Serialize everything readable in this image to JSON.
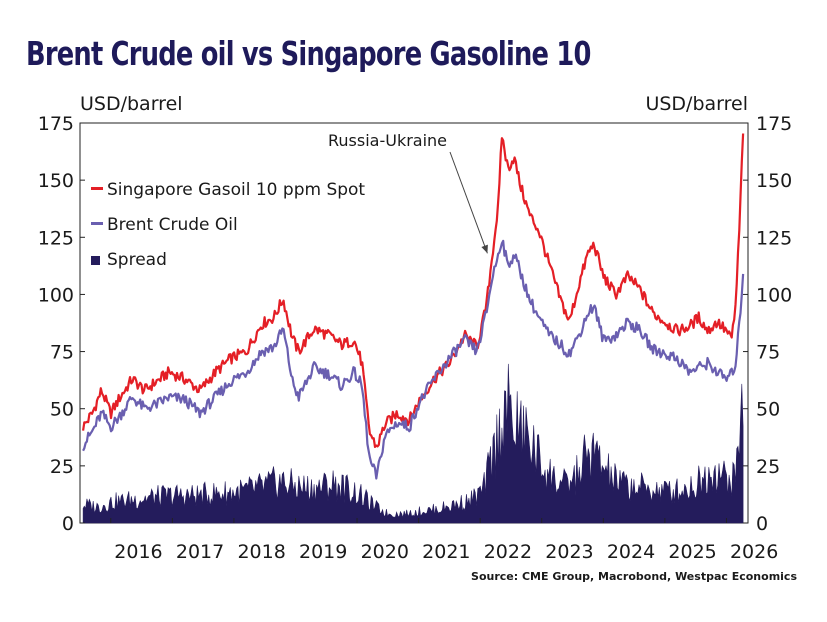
{
  "title": "Brent Crude oil vs Singapore Gasoline 10",
  "source": "Source: CME Group, Macrobond, Westpac Economics",
  "colors": {
    "gasoil": "#e41f26",
    "brent": "#6a5fb0",
    "spread": "#241c5c",
    "title": "#1e1a5a"
  },
  "chart_data": {
    "type": "line",
    "y_left_label": "USD/barrel",
    "y_right_label": "USD/barrel",
    "ylim": [
      0,
      175
    ],
    "yticks": [
      "0",
      "25",
      "50",
      "75",
      "100",
      "125",
      "150",
      "175"
    ],
    "xlim": [
      2015.5,
      2026.35
    ],
    "xticks": [
      "2016",
      "2017",
      "2018",
      "2019",
      "2020",
      "2021",
      "2022",
      "2023",
      "2024",
      "2025",
      "2026"
    ],
    "annotation": {
      "text": "Russia-Ukraine",
      "x": 2022.15
    },
    "legend": [
      "Singapore Gasoil 10 ppm Spot",
      "Brent Crude Oil",
      "Spread"
    ],
    "series": [
      {
        "name": "Singapore Gasoil 10 ppm Spot",
        "kind": "line",
        "color": "#e41f26",
        "points": [
          [
            2015.55,
            42
          ],
          [
            2015.7,
            48
          ],
          [
            2015.85,
            58
          ],
          [
            2016.0,
            48
          ],
          [
            2016.15,
            55
          ],
          [
            2016.35,
            63
          ],
          [
            2016.55,
            58
          ],
          [
            2016.75,
            62
          ],
          [
            2016.95,
            66
          ],
          [
            2017.2,
            63
          ],
          [
            2017.45,
            58
          ],
          [
            2017.7,
            66
          ],
          [
            2017.95,
            72
          ],
          [
            2018.2,
            75
          ],
          [
            2018.45,
            87
          ],
          [
            2018.65,
            90
          ],
          [
            2018.8,
            98
          ],
          [
            2018.95,
            81
          ],
          [
            2019.05,
            75
          ],
          [
            2019.3,
            85
          ],
          [
            2019.55,
            82
          ],
          [
            2019.75,
            78
          ],
          [
            2019.95,
            80
          ],
          [
            2020.08,
            70
          ],
          [
            2020.2,
            40
          ],
          [
            2020.32,
            33
          ],
          [
            2020.45,
            43
          ],
          [
            2020.65,
            48
          ],
          [
            2020.85,
            45
          ],
          [
            2021.0,
            53
          ],
          [
            2021.25,
            63
          ],
          [
            2021.5,
            70
          ],
          [
            2021.75,
            82
          ],
          [
            2021.95,
            77
          ],
          [
            2022.1,
            95
          ],
          [
            2022.2,
            118
          ],
          [
            2022.3,
            140
          ],
          [
            2022.35,
            170
          ],
          [
            2022.45,
            155
          ],
          [
            2022.55,
            160
          ],
          [
            2022.65,
            148
          ],
          [
            2022.8,
            135
          ],
          [
            2022.95,
            128
          ],
          [
            2023.1,
            115
          ],
          [
            2023.3,
            98
          ],
          [
            2023.45,
            88
          ],
          [
            2023.6,
            104
          ],
          [
            2023.75,
            118
          ],
          [
            2023.85,
            122
          ],
          [
            2024.0,
            108
          ],
          [
            2024.2,
            100
          ],
          [
            2024.4,
            108
          ],
          [
            2024.6,
            102
          ],
          [
            2024.8,
            92
          ],
          [
            2025.0,
            88
          ],
          [
            2025.2,
            84
          ],
          [
            2025.4,
            86
          ],
          [
            2025.55,
            90
          ],
          [
            2025.7,
            84
          ],
          [
            2025.85,
            88
          ],
          [
            2026.0,
            84
          ],
          [
            2026.08,
            80
          ],
          [
            2026.15,
            95
          ],
          [
            2026.22,
            135
          ],
          [
            2026.27,
            172
          ]
        ]
      },
      {
        "name": "Brent Crude Oil",
        "kind": "line",
        "color": "#6a5fb0",
        "points": [
          [
            2015.55,
            34
          ],
          [
            2015.7,
            40
          ],
          [
            2015.85,
            48
          ],
          [
            2016.0,
            42
          ],
          [
            2016.15,
            47
          ],
          [
            2016.35,
            55
          ],
          [
            2016.55,
            50
          ],
          [
            2016.75,
            52
          ],
          [
            2016.95,
            55
          ],
          [
            2017.2,
            54
          ],
          [
            2017.45,
            48
          ],
          [
            2017.7,
            55
          ],
          [
            2017.95,
            62
          ],
          [
            2018.2,
            66
          ],
          [
            2018.45,
            75
          ],
          [
            2018.65,
            77
          ],
          [
            2018.8,
            85
          ],
          [
            2018.95,
            62
          ],
          [
            2019.05,
            55
          ],
          [
            2019.3,
            68
          ],
          [
            2019.55,
            65
          ],
          [
            2019.75,
            60
          ],
          [
            2019.95,
            66
          ],
          [
            2020.08,
            60
          ],
          [
            2020.2,
            28
          ],
          [
            2020.32,
            20
          ],
          [
            2020.45,
            38
          ],
          [
            2020.65,
            44
          ],
          [
            2020.85,
            42
          ],
          [
            2021.0,
            52
          ],
          [
            2021.25,
            63
          ],
          [
            2021.5,
            72
          ],
          [
            2021.75,
            80
          ],
          [
            2021.95,
            75
          ],
          [
            2022.1,
            92
          ],
          [
            2022.2,
            108
          ],
          [
            2022.3,
            118
          ],
          [
            2022.35,
            125
          ],
          [
            2022.45,
            112
          ],
          [
            2022.55,
            118
          ],
          [
            2022.65,
            110
          ],
          [
            2022.8,
            98
          ],
          [
            2022.95,
            90
          ],
          [
            2023.1,
            83
          ],
          [
            2023.3,
            78
          ],
          [
            2023.45,
            74
          ],
          [
            2023.6,
            82
          ],
          [
            2023.75,
            92
          ],
          [
            2023.85,
            95
          ],
          [
            2024.0,
            80
          ],
          [
            2024.2,
            82
          ],
          [
            2024.4,
            88
          ],
          [
            2024.6,
            84
          ],
          [
            2024.8,
            76
          ],
          [
            2025.0,
            74
          ],
          [
            2025.2,
            72
          ],
          [
            2025.4,
            66
          ],
          [
            2025.55,
            68
          ],
          [
            2025.7,
            70
          ],
          [
            2025.85,
            66
          ],
          [
            2026.0,
            63
          ],
          [
            2026.08,
            65
          ],
          [
            2026.15,
            70
          ],
          [
            2026.22,
            90
          ],
          [
            2026.27,
            110
          ]
        ]
      },
      {
        "name": "Spread",
        "kind": "area",
        "color": "#241c5c",
        "points": [
          [
            2015.55,
            8
          ],
          [
            2015.8,
            7
          ],
          [
            2016.0,
            9
          ],
          [
            2016.3,
            10
          ],
          [
            2016.6,
            11
          ],
          [
            2017.0,
            12
          ],
          [
            2017.4,
            12
          ],
          [
            2017.8,
            13
          ],
          [
            2018.2,
            14
          ],
          [
            2018.5,
            16
          ],
          [
            2018.75,
            18
          ],
          [
            2019.0,
            16
          ],
          [
            2019.3,
            15
          ],
          [
            2019.6,
            17
          ],
          [
            2019.85,
            15
          ],
          [
            2020.0,
            13
          ],
          [
            2020.15,
            10
          ],
          [
            2020.3,
            7
          ],
          [
            2020.5,
            4
          ],
          [
            2020.8,
            4
          ],
          [
            2021.0,
            5
          ],
          [
            2021.3,
            6
          ],
          [
            2021.6,
            8
          ],
          [
            2021.85,
            10
          ],
          [
            2022.05,
            14
          ],
          [
            2022.15,
            24
          ],
          [
            2022.3,
            38
          ],
          [
            2022.4,
            52
          ],
          [
            2022.5,
            46
          ],
          [
            2022.65,
            40
          ],
          [
            2022.8,
            36
          ],
          [
            2022.95,
            28
          ],
          [
            2023.1,
            22
          ],
          [
            2023.25,
            18
          ],
          [
            2023.4,
            16
          ],
          [
            2023.55,
            20
          ],
          [
            2023.7,
            28
          ],
          [
            2023.85,
            30
          ],
          [
            2024.0,
            24
          ],
          [
            2024.2,
            18
          ],
          [
            2024.45,
            16
          ],
          [
            2024.7,
            15
          ],
          [
            2024.95,
            14
          ],
          [
            2025.2,
            14
          ],
          [
            2025.45,
            16
          ],
          [
            2025.65,
            20
          ],
          [
            2025.8,
            24
          ],
          [
            2025.95,
            20
          ],
          [
            2026.1,
            18
          ],
          [
            2026.2,
            30
          ],
          [
            2026.27,
            60
          ]
        ]
      }
    ]
  }
}
